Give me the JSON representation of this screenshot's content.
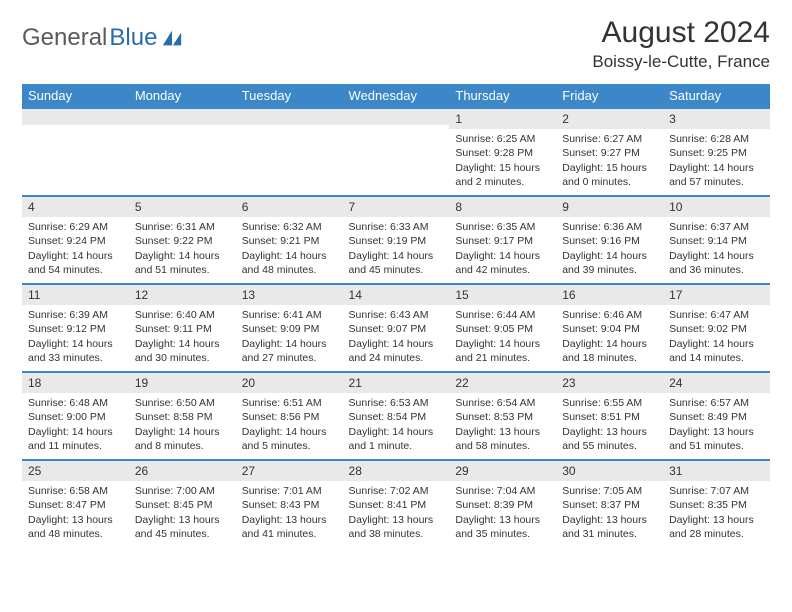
{
  "brand": {
    "part1": "General",
    "part2": "Blue"
  },
  "title": "August 2024",
  "location": "Boissy-le-Cutte, France",
  "colors": {
    "header_bg": "#3b87c8",
    "header_text": "#ffffff",
    "daynum_bg": "#e9e9e9",
    "border_top": "#3b87c8",
    "text": "#333333",
    "page_bg": "#ffffff"
  },
  "weekdays": [
    "Sunday",
    "Monday",
    "Tuesday",
    "Wednesday",
    "Thursday",
    "Friday",
    "Saturday"
  ],
  "weeks": [
    [
      null,
      null,
      null,
      null,
      {
        "n": "1",
        "sr": "Sunrise: 6:25 AM",
        "ss": "Sunset: 9:28 PM",
        "dl": "Daylight: 15 hours and 2 minutes."
      },
      {
        "n": "2",
        "sr": "Sunrise: 6:27 AM",
        "ss": "Sunset: 9:27 PM",
        "dl": "Daylight: 15 hours and 0 minutes."
      },
      {
        "n": "3",
        "sr": "Sunrise: 6:28 AM",
        "ss": "Sunset: 9:25 PM",
        "dl": "Daylight: 14 hours and 57 minutes."
      }
    ],
    [
      {
        "n": "4",
        "sr": "Sunrise: 6:29 AM",
        "ss": "Sunset: 9:24 PM",
        "dl": "Daylight: 14 hours and 54 minutes."
      },
      {
        "n": "5",
        "sr": "Sunrise: 6:31 AM",
        "ss": "Sunset: 9:22 PM",
        "dl": "Daylight: 14 hours and 51 minutes."
      },
      {
        "n": "6",
        "sr": "Sunrise: 6:32 AM",
        "ss": "Sunset: 9:21 PM",
        "dl": "Daylight: 14 hours and 48 minutes."
      },
      {
        "n": "7",
        "sr": "Sunrise: 6:33 AM",
        "ss": "Sunset: 9:19 PM",
        "dl": "Daylight: 14 hours and 45 minutes."
      },
      {
        "n": "8",
        "sr": "Sunrise: 6:35 AM",
        "ss": "Sunset: 9:17 PM",
        "dl": "Daylight: 14 hours and 42 minutes."
      },
      {
        "n": "9",
        "sr": "Sunrise: 6:36 AM",
        "ss": "Sunset: 9:16 PM",
        "dl": "Daylight: 14 hours and 39 minutes."
      },
      {
        "n": "10",
        "sr": "Sunrise: 6:37 AM",
        "ss": "Sunset: 9:14 PM",
        "dl": "Daylight: 14 hours and 36 minutes."
      }
    ],
    [
      {
        "n": "11",
        "sr": "Sunrise: 6:39 AM",
        "ss": "Sunset: 9:12 PM",
        "dl": "Daylight: 14 hours and 33 minutes."
      },
      {
        "n": "12",
        "sr": "Sunrise: 6:40 AM",
        "ss": "Sunset: 9:11 PM",
        "dl": "Daylight: 14 hours and 30 minutes."
      },
      {
        "n": "13",
        "sr": "Sunrise: 6:41 AM",
        "ss": "Sunset: 9:09 PM",
        "dl": "Daylight: 14 hours and 27 minutes."
      },
      {
        "n": "14",
        "sr": "Sunrise: 6:43 AM",
        "ss": "Sunset: 9:07 PM",
        "dl": "Daylight: 14 hours and 24 minutes."
      },
      {
        "n": "15",
        "sr": "Sunrise: 6:44 AM",
        "ss": "Sunset: 9:05 PM",
        "dl": "Daylight: 14 hours and 21 minutes."
      },
      {
        "n": "16",
        "sr": "Sunrise: 6:46 AM",
        "ss": "Sunset: 9:04 PM",
        "dl": "Daylight: 14 hours and 18 minutes."
      },
      {
        "n": "17",
        "sr": "Sunrise: 6:47 AM",
        "ss": "Sunset: 9:02 PM",
        "dl": "Daylight: 14 hours and 14 minutes."
      }
    ],
    [
      {
        "n": "18",
        "sr": "Sunrise: 6:48 AM",
        "ss": "Sunset: 9:00 PM",
        "dl": "Daylight: 14 hours and 11 minutes."
      },
      {
        "n": "19",
        "sr": "Sunrise: 6:50 AM",
        "ss": "Sunset: 8:58 PM",
        "dl": "Daylight: 14 hours and 8 minutes."
      },
      {
        "n": "20",
        "sr": "Sunrise: 6:51 AM",
        "ss": "Sunset: 8:56 PM",
        "dl": "Daylight: 14 hours and 5 minutes."
      },
      {
        "n": "21",
        "sr": "Sunrise: 6:53 AM",
        "ss": "Sunset: 8:54 PM",
        "dl": "Daylight: 14 hours and 1 minute."
      },
      {
        "n": "22",
        "sr": "Sunrise: 6:54 AM",
        "ss": "Sunset: 8:53 PM",
        "dl": "Daylight: 13 hours and 58 minutes."
      },
      {
        "n": "23",
        "sr": "Sunrise: 6:55 AM",
        "ss": "Sunset: 8:51 PM",
        "dl": "Daylight: 13 hours and 55 minutes."
      },
      {
        "n": "24",
        "sr": "Sunrise: 6:57 AM",
        "ss": "Sunset: 8:49 PM",
        "dl": "Daylight: 13 hours and 51 minutes."
      }
    ],
    [
      {
        "n": "25",
        "sr": "Sunrise: 6:58 AM",
        "ss": "Sunset: 8:47 PM",
        "dl": "Daylight: 13 hours and 48 minutes."
      },
      {
        "n": "26",
        "sr": "Sunrise: 7:00 AM",
        "ss": "Sunset: 8:45 PM",
        "dl": "Daylight: 13 hours and 45 minutes."
      },
      {
        "n": "27",
        "sr": "Sunrise: 7:01 AM",
        "ss": "Sunset: 8:43 PM",
        "dl": "Daylight: 13 hours and 41 minutes."
      },
      {
        "n": "28",
        "sr": "Sunrise: 7:02 AM",
        "ss": "Sunset: 8:41 PM",
        "dl": "Daylight: 13 hours and 38 minutes."
      },
      {
        "n": "29",
        "sr": "Sunrise: 7:04 AM",
        "ss": "Sunset: 8:39 PM",
        "dl": "Daylight: 13 hours and 35 minutes."
      },
      {
        "n": "30",
        "sr": "Sunrise: 7:05 AM",
        "ss": "Sunset: 8:37 PM",
        "dl": "Daylight: 13 hours and 31 minutes."
      },
      {
        "n": "31",
        "sr": "Sunrise: 7:07 AM",
        "ss": "Sunset: 8:35 PM",
        "dl": "Daylight: 13 hours and 28 minutes."
      }
    ]
  ]
}
